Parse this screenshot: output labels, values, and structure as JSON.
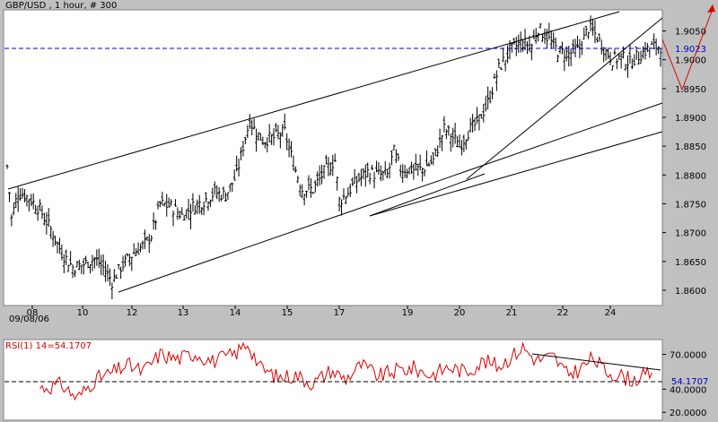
{
  "chart_data": [
    {
      "type": "candlestick",
      "title": "GBP/USD , 1 hour, # 300",
      "date_label": "09/08/06",
      "x_tick_labels": [
        "08",
        "10",
        "12",
        "13",
        "14",
        "15",
        "17",
        "19",
        "20",
        "21",
        "22",
        "24"
      ],
      "y_ticks": [
        "1.9050",
        "1.9000",
        "1.8950",
        "1.8900",
        "1.8850",
        "1.8800",
        "1.8750",
        "1.8700",
        "1.8650",
        "1.8600"
      ],
      "ylim": [
        1.8575,
        1.9085
      ],
      "current_value": "1.9023",
      "series": [
        {
          "name": "GBP/USD",
          "close_path": [
            {
              "x": 0,
              "y": 1.8815
            },
            {
              "x": 2,
              "y": 1.8725
            },
            {
              "x": 5,
              "y": 1.877
            },
            {
              "x": 10,
              "y": 1.876
            },
            {
              "x": 15,
              "y": 1.874
            },
            {
              "x": 20,
              "y": 1.8705
            },
            {
              "x": 25,
              "y": 1.8665
            },
            {
              "x": 30,
              "y": 1.864
            },
            {
              "x": 35,
              "y": 1.8645
            },
            {
              "x": 40,
              "y": 1.8655
            },
            {
              "x": 45,
              "y": 1.8635
            },
            {
              "x": 48,
              "y": 1.8615
            },
            {
              "x": 52,
              "y": 1.864
            },
            {
              "x": 58,
              "y": 1.8665
            },
            {
              "x": 63,
              "y": 1.868
            },
            {
              "x": 66,
              "y": 1.8695
            },
            {
              "x": 70,
              "y": 1.875
            },
            {
              "x": 75,
              "y": 1.8745
            },
            {
              "x": 80,
              "y": 1.873
            },
            {
              "x": 85,
              "y": 1.8745
            },
            {
              "x": 90,
              "y": 1.8755
            },
            {
              "x": 95,
              "y": 1.877
            },
            {
              "x": 100,
              "y": 1.8765
            },
            {
              "x": 105,
              "y": 1.88
            },
            {
              "x": 108,
              "y": 1.885
            },
            {
              "x": 111,
              "y": 1.8895
            },
            {
              "x": 113,
              "y": 1.888
            },
            {
              "x": 117,
              "y": 1.886
            },
            {
              "x": 122,
              "y": 1.8865
            },
            {
              "x": 127,
              "y": 1.8875
            },
            {
              "x": 131,
              "y": 1.882
            },
            {
              "x": 135,
              "y": 1.8775
            },
            {
              "x": 140,
              "y": 1.8775
            },
            {
              "x": 145,
              "y": 1.8805
            },
            {
              "x": 150,
              "y": 1.8825
            },
            {
              "x": 152,
              "y": 1.8755
            },
            {
              "x": 155,
              "y": 1.8765
            },
            {
              "x": 160,
              "y": 1.879
            },
            {
              "x": 165,
              "y": 1.8805
            },
            {
              "x": 170,
              "y": 1.88
            },
            {
              "x": 174,
              "y": 1.88
            },
            {
              "x": 177,
              "y": 1.884
            },
            {
              "x": 180,
              "y": 1.881
            },
            {
              "x": 185,
              "y": 1.881
            },
            {
              "x": 190,
              "y": 1.881
            },
            {
              "x": 195,
              "y": 1.8825
            },
            {
              "x": 200,
              "y": 1.888
            },
            {
              "x": 203,
              "y": 1.887
            },
            {
              "x": 207,
              "y": 1.885
            },
            {
              "x": 211,
              "y": 1.8875
            },
            {
              "x": 215,
              "y": 1.889
            },
            {
              "x": 220,
              "y": 1.8925
            },
            {
              "x": 225,
              "y": 1.8985
            },
            {
              "x": 230,
              "y": 1.9015
            },
            {
              "x": 235,
              "y": 1.903
            },
            {
              "x": 240,
              "y": 1.9025
            },
            {
              "x": 243,
              "y": 1.9055
            },
            {
              "x": 247,
              "y": 1.904
            },
            {
              "x": 252,
              "y": 1.9015
            },
            {
              "x": 257,
              "y": 1.901
            },
            {
              "x": 262,
              "y": 1.902
            },
            {
              "x": 266,
              "y": 1.9055
            },
            {
              "x": 269,
              "y": 1.9045
            },
            {
              "x": 273,
              "y": 1.902
            },
            {
              "x": 277,
              "y": 1.9
            },
            {
              "x": 281,
              "y": 1.9005
            },
            {
              "x": 285,
              "y": 1.8995
            },
            {
              "x": 290,
              "y": 1.901
            },
            {
              "x": 295,
              "y": 1.9023
            }
          ]
        }
      ]
    },
    {
      "type": "line",
      "title": "RSI(1) 14=54.1707",
      "y_ticks": [
        "70.0000",
        "40.0000",
        "20.0000"
      ],
      "current_value": "54.1707",
      "ylim": [
        14,
        82
      ],
      "series": [
        {
          "name": "RSI(1) 14",
          "points": [
            {
              "x": 15,
              "y": 41
            },
            {
              "x": 25,
              "y": 44
            },
            {
              "x": 32,
              "y": 32
            },
            {
              "x": 40,
              "y": 48
            },
            {
              "x": 48,
              "y": 54
            },
            {
              "x": 55,
              "y": 61
            },
            {
              "x": 62,
              "y": 55
            },
            {
              "x": 70,
              "y": 70
            },
            {
              "x": 78,
              "y": 66
            },
            {
              "x": 86,
              "y": 71
            },
            {
              "x": 94,
              "y": 64
            },
            {
              "x": 104,
              "y": 70
            },
            {
              "x": 110,
              "y": 80
            },
            {
              "x": 116,
              "y": 58
            },
            {
              "x": 124,
              "y": 50
            },
            {
              "x": 132,
              "y": 52
            },
            {
              "x": 140,
              "y": 45
            },
            {
              "x": 148,
              "y": 56
            },
            {
              "x": 155,
              "y": 49
            },
            {
              "x": 162,
              "y": 61
            },
            {
              "x": 170,
              "y": 51
            },
            {
              "x": 178,
              "y": 56
            },
            {
              "x": 186,
              "y": 58
            },
            {
              "x": 194,
              "y": 52
            },
            {
              "x": 202,
              "y": 59
            },
            {
              "x": 210,
              "y": 55
            },
            {
              "x": 218,
              "y": 64
            },
            {
              "x": 225,
              "y": 60
            },
            {
              "x": 232,
              "y": 70
            },
            {
              "x": 236,
              "y": 76
            },
            {
              "x": 242,
              "y": 65
            },
            {
              "x": 250,
              "y": 68
            },
            {
              "x": 256,
              "y": 53
            },
            {
              "x": 262,
              "y": 57
            },
            {
              "x": 268,
              "y": 67
            },
            {
              "x": 274,
              "y": 55
            },
            {
              "x": 280,
              "y": 52
            },
            {
              "x": 286,
              "y": 48
            },
            {
              "x": 292,
              "y": 51
            },
            {
              "x": 295,
              "y": 54.17
            }
          ]
        }
      ]
    }
  ]
}
